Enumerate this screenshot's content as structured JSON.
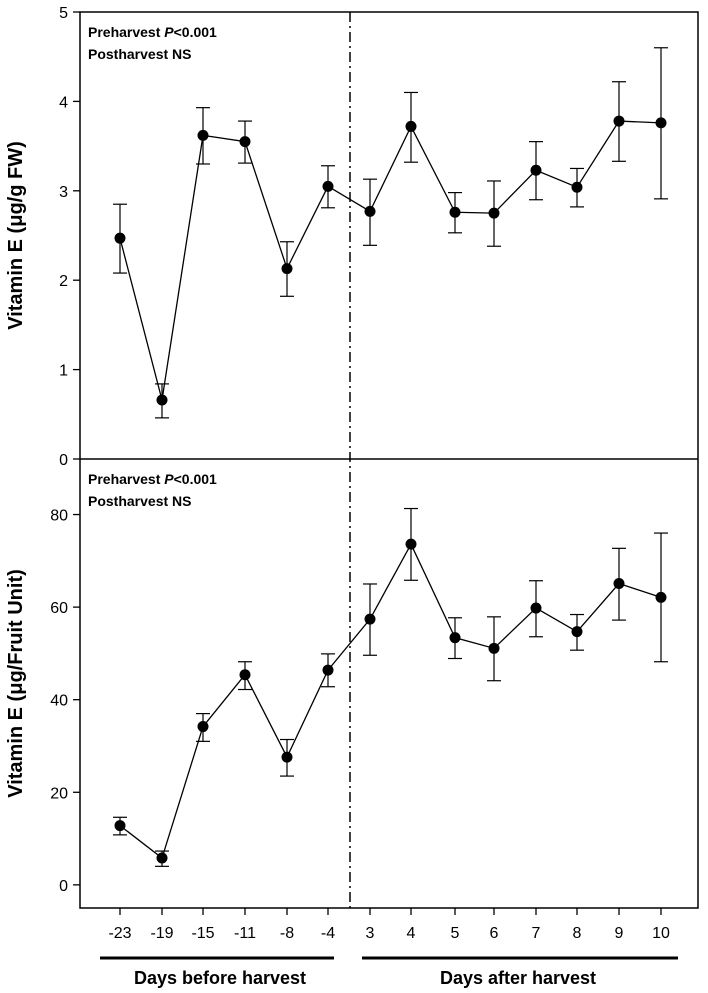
{
  "chart_data": [
    {
      "type": "line",
      "panel": "top",
      "ylabel": "Vitamin E (μg/g FW)",
      "ylim": [
        0,
        5
      ],
      "yticks": [
        "0",
        "1",
        "2",
        "3",
        "4",
        "5"
      ],
      "annotation": {
        "line1_prefix": "Preharvest",
        "line1_p": "P",
        "line1_suffix": "<0.001",
        "line2": "Postharvest NS"
      },
      "series": [
        {
          "name": "Vitamin E per g FW",
          "values": [
            2.47,
            0.66,
            3.62,
            3.55,
            2.13,
            3.05,
            2.77,
            3.72,
            2.76,
            2.75,
            3.23,
            3.04,
            3.78,
            3.76
          ],
          "err_low": [
            2.08,
            0.46,
            3.3,
            3.31,
            1.82,
            2.81,
            2.39,
            3.32,
            2.53,
            2.38,
            2.9,
            2.82,
            3.33,
            2.91
          ],
          "err_high": [
            2.85,
            0.84,
            3.93,
            3.78,
            2.43,
            3.28,
            3.13,
            4.1,
            2.98,
            3.11,
            3.55,
            3.25,
            4.22,
            4.6
          ]
        }
      ]
    },
    {
      "type": "line",
      "panel": "bottom",
      "ylabel": "Vitamin E (μg/Fruit Unit)",
      "ylim": [
        -5,
        92
      ],
      "yticks": [
        "0",
        "20",
        "40",
        "60",
        "80"
      ],
      "annotation": {
        "line1_prefix": "Preharvest",
        "line1_p": "P",
        "line1_suffix": "<0.001",
        "line2": "Postharvest NS"
      },
      "series": [
        {
          "name": "Vitamin E per fruit unit",
          "values": [
            12.8,
            5.8,
            34.2,
            45.4,
            27.6,
            46.4,
            57.4,
            73.6,
            53.4,
            51.1,
            59.8,
            54.7,
            65.1,
            62.1
          ],
          "err_low": [
            10.8,
            4.0,
            31.0,
            42.2,
            23.5,
            42.8,
            49.6,
            65.8,
            48.9,
            44.1,
            53.6,
            50.7,
            57.2,
            48.2
          ],
          "err_high": [
            14.6,
            7.3,
            37.0,
            48.2,
            31.4,
            49.9,
            65.0,
            81.3,
            57.7,
            57.9,
            65.7,
            58.4,
            72.7,
            76.0
          ]
        }
      ]
    }
  ],
  "x": {
    "categories": [
      "-23",
      "-19",
      "-15",
      "-11",
      "-8",
      "-4",
      "3",
      "4",
      "5",
      "6",
      "7",
      "8",
      "9",
      "10"
    ],
    "before_label": "Days before harvest",
    "after_label": "Days after harvest"
  }
}
